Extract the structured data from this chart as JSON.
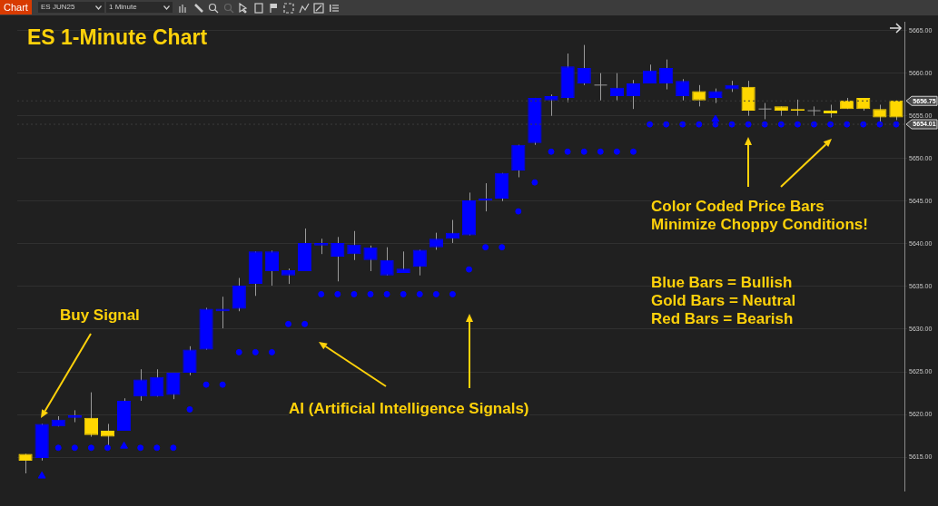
{
  "chart_data": {
    "type": "candlestick",
    "title": "ES 1-Minute Chart",
    "categories": [
      null,
      null,
      null,
      null,
      null,
      null,
      null,
      null,
      null,
      null,
      null,
      null,
      null,
      null,
      null,
      null,
      null,
      null,
      null,
      null,
      null,
      null,
      null,
      null,
      null,
      null,
      null,
      null,
      null,
      null,
      null,
      null,
      null,
      null,
      null,
      null,
      null,
      null,
      null,
      null,
      null,
      null,
      null,
      null,
      null,
      null,
      null,
      null,
      null,
      null,
      null,
      null,
      null,
      null
    ],
    "ohlc": [
      [
        5615.4,
        5615.4,
        5613.1,
        5614.6
      ],
      [
        5614.9,
        5618.9,
        5614.6,
        5618.9
      ],
      [
        5618.6,
        5619.8,
        5618.6,
        5619.4
      ],
      [
        5619.6,
        5620.5,
        5619.1,
        5619.9
      ],
      [
        5619.6,
        5622.6,
        5617.4,
        5617.6
      ],
      [
        5618.1,
        5618.9,
        5616.3,
        5617.4
      ],
      [
        5618.1,
        5621.9,
        5618.1,
        5621.6
      ],
      [
        5622.1,
        5625.3,
        5621.6,
        5624.1
      ],
      [
        5622.1,
        5625.3,
        5622.1,
        5624.4
      ],
      [
        5622.3,
        5624.9,
        5621.8,
        5624.9
      ],
      [
        5624.9,
        5628.0,
        5624.6,
        5627.6
      ],
      [
        5627.6,
        5632.5,
        5627.6,
        5632.4
      ],
      [
        5632.1,
        5633.8,
        5630.1,
        5632.4
      ],
      [
        5632.4,
        5636.0,
        5632.1,
        5635.1
      ],
      [
        5635.3,
        5639.1,
        5633.9,
        5639.1
      ],
      [
        5636.8,
        5639.2,
        5635.1,
        5639.1
      ],
      [
        5636.3,
        5637.1,
        5635.3,
        5636.9
      ],
      [
        5636.8,
        5641.8,
        5636.8,
        5640.1
      ],
      [
        5639.8,
        5640.6,
        5638.8,
        5640.1
      ],
      [
        5638.5,
        5640.8,
        5635.6,
        5640.1
      ],
      [
        5638.8,
        5641.5,
        5638.1,
        5639.9
      ],
      [
        5638.1,
        5639.8,
        5636.8,
        5639.6
      ],
      [
        5636.3,
        5639.6,
        5636.3,
        5638.1
      ],
      [
        5636.6,
        5639.1,
        5636.6,
        5637.1
      ],
      [
        5637.3,
        5639.3,
        5636.3,
        5639.3
      ],
      [
        5639.6,
        5641.3,
        5639.3,
        5640.6
      ],
      [
        5640.6,
        5642.8,
        5640.1,
        5641.3
      ],
      [
        5641.0,
        5646.0,
        5641.0,
        5645.1
      ],
      [
        5645.1,
        5647.1,
        5643.8,
        5645.3
      ],
      [
        5645.3,
        5648.3,
        5645.0,
        5648.3
      ],
      [
        5648.6,
        5651.6,
        5647.8,
        5651.6
      ],
      [
        5651.8,
        5657.1,
        5651.6,
        5657.1
      ],
      [
        5656.8,
        5657.5,
        5655.0,
        5657.3
      ],
      [
        5657.1,
        5662.3,
        5656.6,
        5660.8
      ],
      [
        5658.8,
        5663.3,
        5658.6,
        5660.6
      ],
      [
        5658.6,
        5660.0,
        5656.8,
        5658.6
      ],
      [
        5657.3,
        5660.0,
        5656.8,
        5658.3
      ],
      [
        5657.3,
        5659.2,
        5655.8,
        5658.8
      ],
      [
        5658.8,
        5661.0,
        5658.8,
        5660.3
      ],
      [
        5658.8,
        5661.6,
        5658.1,
        5660.6
      ],
      [
        5657.3,
        5659.3,
        5656.8,
        5659.1
      ],
      [
        5657.9,
        5658.6,
        5656.1,
        5656.8
      ],
      [
        5657.1,
        5658.2,
        5656.5,
        5657.9
      ],
      [
        5658.1,
        5659.1,
        5657.8,
        5658.6
      ],
      [
        5658.4,
        5659.1,
        5655.0,
        5655.6
      ],
      [
        5655.8,
        5656.5,
        5654.6,
        5655.8
      ],
      [
        5656.1,
        5656.1,
        5655.0,
        5655.6
      ],
      [
        5655.8,
        5656.9,
        5655.0,
        5655.6
      ],
      [
        5655.6,
        5656.1,
        5655.0,
        5655.6
      ],
      [
        5655.6,
        5656.3,
        5654.8,
        5655.3
      ],
      [
        5656.8,
        5657.1,
        5655.8,
        5655.8
      ],
      [
        5657.1,
        5657.1,
        5655.6,
        5655.8
      ],
      [
        5655.8,
        5656.3,
        5654.3,
        5654.8
      ],
      [
        5656.8,
        5656.8,
        5654.5,
        5654.8
      ]
    ],
    "colors": [
      "#ffd700",
      "#0000ff",
      "#0000ff",
      "#0000ff",
      "#ffd700",
      "#ffd700",
      "#0000ff",
      "#0000ff",
      "#0000ff",
      "#0000ff",
      "#0000ff",
      "#0000ff",
      "#0000ff",
      "#0000ff",
      "#0000ff",
      "#0000ff",
      "#0000ff",
      "#0000ff",
      "#0000ff",
      "#0000ff",
      "#0000ff",
      "#0000ff",
      "#0000ff",
      "#0000ff",
      "#0000ff",
      "#0000ff",
      "#0000ff",
      "#0000ff",
      "#0000ff",
      "#0000ff",
      "#0000ff",
      "#0000ff",
      "#0000ff",
      "#0000ff",
      "#0000ff",
      "#a0a0a0",
      "#0000ff",
      "#0000ff",
      "#0000ff",
      "#0000ff",
      "#0000ff",
      "#ffd700",
      "#0000ff",
      "#0000ff",
      "#ffd700",
      "#a0a0a0",
      "#ffd700",
      "#ffd700",
      "#a0a0a0",
      "#ffd700",
      "#ffd700",
      "#ffd700",
      "#ffd700",
      "#ffd700"
    ],
    "series": [
      {
        "type": "scatter",
        "marker": "circle",
        "color": "#0000ff",
        "values": [
          null,
          null,
          5616.1,
          5616.1,
          5616.1,
          5616.1,
          null,
          5616.1,
          5616.1,
          5616.1,
          5620.6,
          5623.5,
          5623.5,
          5627.3,
          5627.3,
          5627.3,
          5630.6,
          5630.6,
          5634.1,
          5634.1,
          5634.1,
          5634.1,
          5634.1,
          5634.1,
          5634.1,
          5634.1,
          5634.1,
          5637.0,
          5639.6,
          5639.6,
          5643.8,
          5647.2,
          5650.8,
          5650.8,
          5650.8,
          5650.8,
          5650.8,
          5650.8,
          5654.0,
          5654.0,
          5654.0,
          5654.0,
          5654.0,
          5654.0,
          5654.0,
          5654.0,
          5654.0,
          5654.0,
          5654.0,
          5654.0,
          5654.0,
          5654.0,
          5654.0,
          5654.0
        ]
      },
      {
        "type": "scatter",
        "marker": "triangle",
        "color": "#0000ff",
        "values": [
          null,
          5612.8,
          null,
          null,
          null,
          null,
          5616.3,
          null,
          null,
          null,
          null,
          null,
          null,
          null,
          null,
          null,
          null,
          null,
          null,
          null,
          null,
          null,
          null,
          null,
          null,
          null,
          null,
          null,
          null,
          null,
          null,
          null,
          null,
          null,
          null,
          null,
          null,
          null,
          null,
          null,
          null,
          null,
          5654.6,
          null,
          null,
          null,
          null,
          null,
          null,
          null,
          null,
          null,
          null,
          null
        ]
      }
    ],
    "ylim": [
      5611,
      5666
    ],
    "yticks": [
      {
        "value": 5615,
        "label": "5615.00"
      },
      {
        "value": 5620,
        "label": "5620.00"
      },
      {
        "value": 5625,
        "label": "5625.00"
      },
      {
        "value": 5630,
        "label": "5630.00"
      },
      {
        "value": 5635,
        "label": "5635.00"
      },
      {
        "value": 5640,
        "label": "5640.00"
      },
      {
        "value": 5645,
        "label": "5645.00"
      },
      {
        "value": 5650,
        "label": "5650.00"
      },
      {
        "value": 5655,
        "label": "5655.00"
      },
      {
        "value": 5660,
        "label": "5660.00"
      },
      {
        "value": 5665,
        "label": "5665.00"
      }
    ],
    "ref_lines": [
      {
        "axis": "y",
        "value": 5656.75,
        "label": "5656.75",
        "color": "#4a4a4a"
      },
      {
        "axis": "y",
        "value": 5654.01,
        "label": "5654.01",
        "color": "#4a4a4a"
      }
    ],
    "annotations": [
      "Chart",
      "ES JUN25",
      "1 Minute",
      "Buy Signal",
      "AI (Artificial Intelligence Signals)",
      "Color Coded Price Bars",
      "Minimize Choppy Conditions!",
      "Blue Bars = Bullish",
      "Gold Bars = Neutral",
      "Red Bars = Bearish"
    ],
    "grid": "y",
    "tick_labels": "y",
    "legend": false
  }
}
